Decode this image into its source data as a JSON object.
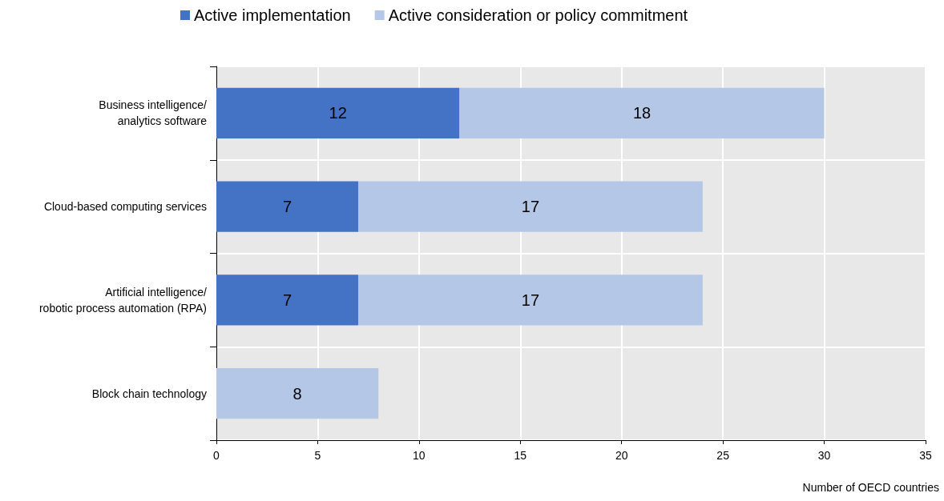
{
  "chart_data": {
    "type": "bar",
    "orientation": "horizontal",
    "stacked": true,
    "categories": [
      "Business intelligence/\nanalytics software",
      "Cloud-based computing services",
      "Artificial intelligence/\nrobotic process automation (RPA)",
      "Block chain technology"
    ],
    "series": [
      {
        "name": "Active implementation",
        "color": "#4472c4",
        "values": [
          12,
          7,
          7,
          null
        ]
      },
      {
        "name": "Active consideration or policy commitment",
        "color": "#b4c7e7",
        "values": [
          18,
          17,
          17,
          8
        ]
      }
    ],
    "xlim": [
      0,
      35
    ],
    "xticks": [
      0,
      5,
      10,
      15,
      20,
      25,
      30,
      35
    ],
    "xlabel": "Number of OECD countries",
    "grid": true,
    "legend": "top",
    "data_labels": true
  }
}
